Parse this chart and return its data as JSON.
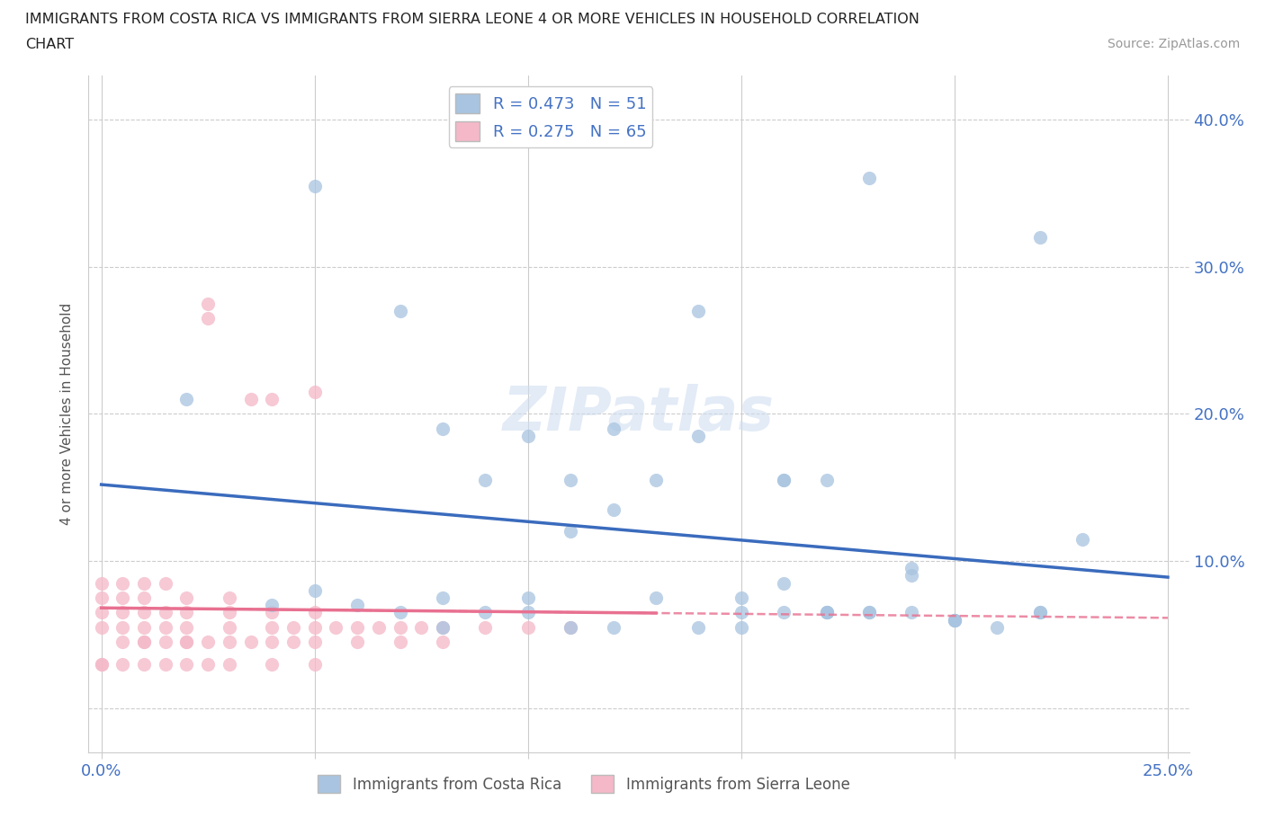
{
  "title_line1": "IMMIGRANTS FROM COSTA RICA VS IMMIGRANTS FROM SIERRA LEONE 4 OR MORE VEHICLES IN HOUSEHOLD CORRELATION",
  "title_line2": "CHART",
  "source_text": "Source: ZipAtlas.com",
  "ylabel": "4 or more Vehicles in Household",
  "xlim": [
    -0.003,
    0.255
  ],
  "ylim": [
    -0.03,
    0.43
  ],
  "xtick_positions": [
    0.0,
    0.05,
    0.1,
    0.15,
    0.2,
    0.25
  ],
  "xticklabels": [
    "0.0%",
    "",
    "",
    "",
    "",
    "25.0%"
  ],
  "ytick_positions": [
    0.0,
    0.1,
    0.2,
    0.3,
    0.4
  ],
  "yticklabels_right": [
    "",
    "10.0%",
    "20.0%",
    "30.0%",
    "40.0%"
  ],
  "costa_rica_color": "#a8c4e0",
  "sierra_leone_color": "#f4b8c8",
  "costa_rica_line_color": "#3a6bbd",
  "sierra_leone_line_color": "#e87090",
  "legend_text1": "R = 0.473   N = 51",
  "legend_text2": "R = 0.275   N = 65",
  "watermark": "ZIPatlas",
  "costa_rica_x": [
    0.02,
    0.05,
    0.07,
    0.08,
    0.09,
    0.1,
    0.11,
    0.12,
    0.13,
    0.14,
    0.15,
    0.16,
    0.17,
    0.18,
    0.19,
    0.2,
    0.22,
    0.23,
    0.04,
    0.06,
    0.08,
    0.09,
    0.1,
    0.11,
    0.12,
    0.14,
    0.15,
    0.16,
    0.17,
    0.18,
    0.21,
    0.07,
    0.08,
    0.1,
    0.11,
    0.12,
    0.13,
    0.16,
    0.16,
    0.19,
    0.22,
    0.05,
    0.14,
    0.15,
    0.17,
    0.19,
    0.2,
    0.17,
    0.2,
    0.18,
    0.22
  ],
  "costa_rica_y": [
    0.21,
    0.355,
    0.27,
    0.19,
    0.155,
    0.185,
    0.155,
    0.19,
    0.155,
    0.185,
    0.065,
    0.085,
    0.065,
    0.36,
    0.09,
    0.06,
    0.32,
    0.115,
    0.07,
    0.07,
    0.055,
    0.065,
    0.065,
    0.055,
    0.055,
    0.055,
    0.055,
    0.065,
    0.065,
    0.065,
    0.055,
    0.065,
    0.075,
    0.075,
    0.12,
    0.135,
    0.075,
    0.155,
    0.155,
    0.095,
    0.065,
    0.08,
    0.27,
    0.075,
    0.155,
    0.065,
    0.06,
    0.065,
    0.06,
    0.065,
    0.065
  ],
  "sierra_leone_x": [
    0.0,
    0.0,
    0.0,
    0.0,
    0.0,
    0.005,
    0.005,
    0.005,
    0.005,
    0.01,
    0.01,
    0.01,
    0.01,
    0.01,
    0.015,
    0.015,
    0.015,
    0.02,
    0.02,
    0.02,
    0.02,
    0.025,
    0.025,
    0.03,
    0.03,
    0.03,
    0.035,
    0.04,
    0.04,
    0.04,
    0.045,
    0.05,
    0.05,
    0.05,
    0.055,
    0.06,
    0.065,
    0.07,
    0.075,
    0.08,
    0.09,
    0.1,
    0.11,
    0.005,
    0.01,
    0.015,
    0.02,
    0.025,
    0.03,
    0.035,
    0.04,
    0.045,
    0.05,
    0.06,
    0.07,
    0.08,
    0.0,
    0.005,
    0.01,
    0.015,
    0.02,
    0.025,
    0.03,
    0.04,
    0.05
  ],
  "sierra_leone_y": [
    0.055,
    0.065,
    0.075,
    0.085,
    0.03,
    0.055,
    0.065,
    0.075,
    0.085,
    0.045,
    0.055,
    0.065,
    0.075,
    0.085,
    0.055,
    0.065,
    0.085,
    0.045,
    0.055,
    0.065,
    0.075,
    0.265,
    0.275,
    0.055,
    0.065,
    0.075,
    0.21,
    0.055,
    0.065,
    0.21,
    0.055,
    0.055,
    0.065,
    0.215,
    0.055,
    0.055,
    0.055,
    0.055,
    0.055,
    0.055,
    0.055,
    0.055,
    0.055,
    0.045,
    0.045,
    0.045,
    0.045,
    0.045,
    0.045,
    0.045,
    0.045,
    0.045,
    0.045,
    0.045,
    0.045,
    0.045,
    0.03,
    0.03,
    0.03,
    0.03,
    0.03,
    0.03,
    0.03,
    0.03,
    0.03
  ]
}
